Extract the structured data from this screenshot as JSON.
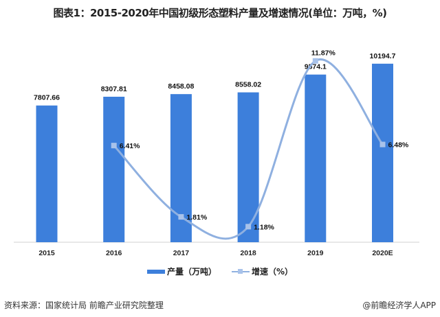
{
  "chart_data": {
    "type": "bar+line",
    "title": "图表1：2015-2020年中国初级形态塑料产量及增速情况(单位：万吨，%)",
    "categories": [
      "2015",
      "2016",
      "2017",
      "2018",
      "2019",
      "2020E"
    ],
    "series": [
      {
        "name": "产量（万吨）",
        "type": "bar",
        "values": [
          7807.66,
          8307.81,
          8458.08,
          8558.02,
          9574.1,
          10194.7
        ],
        "labels": [
          "7807.66",
          "8307.81",
          "8458.08",
          "8558.02",
          "9574.1",
          "10194.7"
        ],
        "color": "#3d7fdb"
      },
      {
        "name": "增速（%）",
        "type": "line",
        "smooth": true,
        "values": [
          null,
          6.41,
          1.81,
          1.18,
          11.87,
          6.48
        ],
        "labels": [
          "",
          "6.41%",
          "1.81%",
          "1.18%",
          "11.87%",
          "6.48%"
        ],
        "color": "#8fb0e0"
      }
    ],
    "legend": "bottom",
    "grid": false
  },
  "footer": {
    "source": "资料来源：国家统计局 前瞻产业研究院整理",
    "credit": "@前瞻经济学人APP"
  }
}
